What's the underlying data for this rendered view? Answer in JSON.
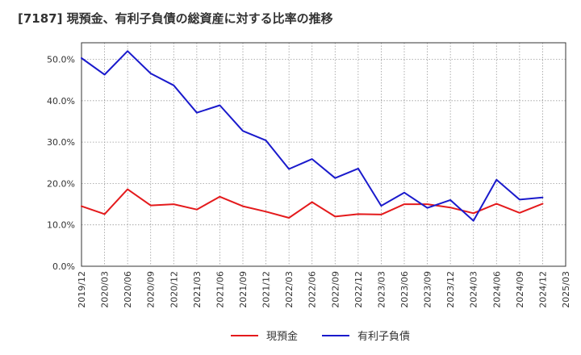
{
  "chart_data": {
    "type": "line",
    "title": "[7187]  現預金、有利子負債の総資産に対する比率の推移",
    "xlabel": "",
    "ylabel": "",
    "ylim": [
      0,
      54
    ],
    "yticks": [
      0,
      10,
      20,
      30,
      40,
      50
    ],
    "ytick_labels": [
      "0.0%",
      "10.0%",
      "20.0%",
      "30.0%",
      "40.0%",
      "50.0%"
    ],
    "categories": [
      "2019/12",
      "2020/03",
      "2020/06",
      "2020/09",
      "2020/12",
      "2021/03",
      "2021/06",
      "2021/09",
      "2021/12",
      "2022/03",
      "2022/06",
      "2022/09",
      "2022/12",
      "2023/03",
      "2023/06",
      "2023/09",
      "2023/12",
      "2024/03",
      "2024/06",
      "2024/09",
      "2024/12",
      "2025/03"
    ],
    "grid": true,
    "legend_position": "bottom-center",
    "series": [
      {
        "name": "現預金",
        "color": "#e41a1c",
        "values": [
          14.5,
          12.6,
          18.6,
          14.7,
          15.0,
          13.7,
          16.8,
          14.5,
          13.2,
          11.7,
          15.5,
          12.0,
          12.6,
          12.5,
          15.0,
          15.0,
          14.2,
          12.8,
          15.1,
          12.9,
          15.1,
          null
        ]
      },
      {
        "name": "有利子負債",
        "color": "#1a1acc",
        "values": [
          50.3,
          46.3,
          52.0,
          46.6,
          43.7,
          37.1,
          38.9,
          32.7,
          30.4,
          23.5,
          25.9,
          21.3,
          23.6,
          14.6,
          17.8,
          14.1,
          16.0,
          11.0,
          20.9,
          16.1,
          16.6,
          null
        ]
      }
    ]
  }
}
